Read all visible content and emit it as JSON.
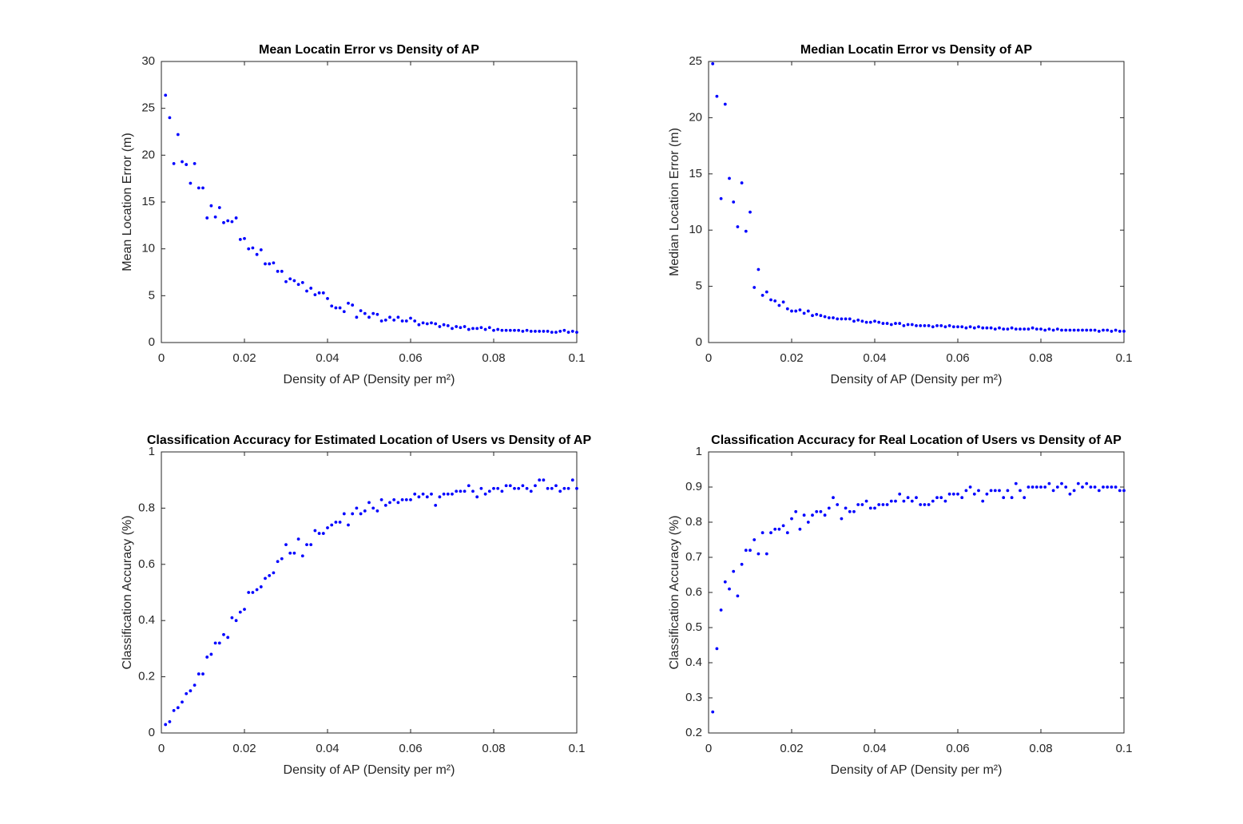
{
  "chart_data": [
    {
      "type": "scatter",
      "title": "Mean Locatin Error vs Density of AP",
      "xlabel": "Density of AP (Density per m²)",
      "ylabel": "Mean Location Error (m)",
      "color": "#0000ff",
      "x": [
        0.001,
        0.002,
        0.003,
        0.004,
        0.005,
        0.006,
        0.007,
        0.008,
        0.009,
        0.01,
        0.011,
        0.012,
        0.013,
        0.014,
        0.015,
        0.016,
        0.017,
        0.018,
        0.019,
        0.02,
        0.021,
        0.022,
        0.023,
        0.024,
        0.025,
        0.026,
        0.027,
        0.028,
        0.029,
        0.03,
        0.031,
        0.032,
        0.033,
        0.034,
        0.035,
        0.036,
        0.037,
        0.038,
        0.039,
        0.04,
        0.041,
        0.042,
        0.043,
        0.044,
        0.045,
        0.046,
        0.047,
        0.048,
        0.049,
        0.05,
        0.051,
        0.052,
        0.053,
        0.054,
        0.055,
        0.056,
        0.057,
        0.058,
        0.059,
        0.06,
        0.061,
        0.062,
        0.063,
        0.064,
        0.065,
        0.066,
        0.067,
        0.068,
        0.069,
        0.07,
        0.071,
        0.072,
        0.073,
        0.074,
        0.075,
        0.076,
        0.077,
        0.078,
        0.079,
        0.08,
        0.081,
        0.082,
        0.083,
        0.084,
        0.085,
        0.086,
        0.087,
        0.088,
        0.089,
        0.09,
        0.091,
        0.092,
        0.093,
        0.094,
        0.095,
        0.096,
        0.097,
        0.098,
        0.099,
        0.1
      ],
      "values": [
        26.4,
        24,
        19.1,
        22.2,
        19.3,
        19,
        17,
        19.1,
        16.5,
        16.5,
        13.3,
        14.6,
        13.4,
        14.4,
        12.8,
        13,
        12.9,
        13.3,
        11,
        11.1,
        10,
        10.1,
        9.4,
        9.9,
        8.4,
        8.4,
        8.5,
        7.6,
        7.6,
        6.5,
        6.8,
        6.6,
        6.2,
        6.4,
        5.5,
        5.8,
        5.1,
        5.3,
        5.3,
        4.7,
        3.9,
        3.7,
        3.7,
        3.3,
        4.2,
        4,
        2.7,
        3.4,
        3.1,
        2.7,
        3.1,
        3,
        2.3,
        2.4,
        2.7,
        2.4,
        2.7,
        2.3,
        2.3,
        2.6,
        2.3,
        1.9,
        2.1,
        2,
        2.1,
        2,
        1.7,
        1.9,
        1.8,
        1.5,
        1.7,
        1.6,
        1.7,
        1.4,
        1.5,
        1.5,
        1.6,
        1.4,
        1.6,
        1.3,
        1.4,
        1.3,
        1.3,
        1.3,
        1.3,
        1.3,
        1.2,
        1.3,
        1.2,
        1.2,
        1.2,
        1.2,
        1.2,
        1.1,
        1.1,
        1.2,
        1.3,
        1.1,
        1.2,
        1.1
      ],
      "xlim": [
        0,
        0.1
      ],
      "xticks": [
        0,
        0.02,
        0.04,
        0.06,
        0.08,
        0.1
      ],
      "ylim": [
        0,
        30
      ],
      "yticks": [
        0,
        5,
        10,
        15,
        20,
        25,
        30
      ]
    },
    {
      "type": "scatter",
      "title": "Median Locatin Error vs Density of AP",
      "xlabel": "Density of AP (Density per m²)",
      "ylabel": "Median Location Error (m)",
      "color": "#0000ff",
      "x": [
        0.001,
        0.002,
        0.003,
        0.004,
        0.005,
        0.006,
        0.007,
        0.008,
        0.009,
        0.01,
        0.011,
        0.012,
        0.013,
        0.014,
        0.015,
        0.016,
        0.017,
        0.018,
        0.019,
        0.02,
        0.021,
        0.022,
        0.023,
        0.024,
        0.025,
        0.026,
        0.027,
        0.028,
        0.029,
        0.03,
        0.031,
        0.032,
        0.033,
        0.034,
        0.035,
        0.036,
        0.037,
        0.038,
        0.039,
        0.04,
        0.041,
        0.042,
        0.043,
        0.044,
        0.045,
        0.046,
        0.047,
        0.048,
        0.049,
        0.05,
        0.051,
        0.052,
        0.053,
        0.054,
        0.055,
        0.056,
        0.057,
        0.058,
        0.059,
        0.06,
        0.061,
        0.062,
        0.063,
        0.064,
        0.065,
        0.066,
        0.067,
        0.068,
        0.069,
        0.07,
        0.071,
        0.072,
        0.073,
        0.074,
        0.075,
        0.076,
        0.077,
        0.078,
        0.079,
        0.08,
        0.081,
        0.082,
        0.083,
        0.084,
        0.085,
        0.086,
        0.087,
        0.088,
        0.089,
        0.09,
        0.091,
        0.092,
        0.093,
        0.094,
        0.095,
        0.096,
        0.097,
        0.098,
        0.099,
        0.1
      ],
      "values": [
        24.8,
        21.9,
        12.8,
        21.2,
        14.6,
        12.5,
        10.3,
        14.2,
        9.9,
        11.6,
        4.9,
        6.5,
        4.2,
        4.5,
        3.8,
        3.7,
        3.3,
        3.6,
        3,
        2.8,
        2.8,
        2.9,
        2.6,
        2.8,
        2.4,
        2.5,
        2.4,
        2.3,
        2.2,
        2.2,
        2.1,
        2.1,
        2.1,
        2.1,
        1.9,
        2,
        1.9,
        1.8,
        1.8,
        1.9,
        1.8,
        1.7,
        1.7,
        1.6,
        1.7,
        1.7,
        1.5,
        1.6,
        1.6,
        1.5,
        1.5,
        1.5,
        1.5,
        1.4,
        1.5,
        1.5,
        1.4,
        1.5,
        1.4,
        1.4,
        1.4,
        1.3,
        1.4,
        1.3,
        1.4,
        1.3,
        1.3,
        1.3,
        1.2,
        1.3,
        1.2,
        1.2,
        1.3,
        1.2,
        1.2,
        1.2,
        1.2,
        1.3,
        1.2,
        1.2,
        1.1,
        1.2,
        1.1,
        1.2,
        1.1,
        1.1,
        1.1,
        1.1,
        1.1,
        1.1,
        1.1,
        1.1,
        1.1,
        1,
        1.1,
        1.1,
        1,
        1.1,
        1,
        1
      ],
      "xlim": [
        0,
        0.1
      ],
      "xticks": [
        0,
        0.02,
        0.04,
        0.06,
        0.08,
        0.1
      ],
      "ylim": [
        0,
        25
      ],
      "yticks": [
        0,
        5,
        10,
        15,
        20,
        25
      ]
    },
    {
      "type": "scatter",
      "title": "Classification Accuracy for Estimated Location of Users vs Density of AP",
      "xlabel": "Density of AP (Density per m²)",
      "ylabel": "Classification Accuracy (%)",
      "color": "#0000ff",
      "x": [
        0.001,
        0.002,
        0.003,
        0.004,
        0.005,
        0.006,
        0.007,
        0.008,
        0.009,
        0.01,
        0.011,
        0.012,
        0.013,
        0.014,
        0.015,
        0.016,
        0.017,
        0.018,
        0.019,
        0.02,
        0.021,
        0.022,
        0.023,
        0.024,
        0.025,
        0.026,
        0.027,
        0.028,
        0.029,
        0.03,
        0.031,
        0.032,
        0.033,
        0.034,
        0.035,
        0.036,
        0.037,
        0.038,
        0.039,
        0.04,
        0.041,
        0.042,
        0.043,
        0.044,
        0.045,
        0.046,
        0.047,
        0.048,
        0.049,
        0.05,
        0.051,
        0.052,
        0.053,
        0.054,
        0.055,
        0.056,
        0.057,
        0.058,
        0.059,
        0.06,
        0.061,
        0.062,
        0.063,
        0.064,
        0.065,
        0.066,
        0.067,
        0.068,
        0.069,
        0.07,
        0.071,
        0.072,
        0.073,
        0.074,
        0.075,
        0.076,
        0.077,
        0.078,
        0.079,
        0.08,
        0.081,
        0.082,
        0.083,
        0.084,
        0.085,
        0.086,
        0.087,
        0.088,
        0.089,
        0.09,
        0.091,
        0.092,
        0.093,
        0.094,
        0.095,
        0.096,
        0.097,
        0.098,
        0.099,
        0.1
      ],
      "values": [
        0.03,
        0.04,
        0.08,
        0.09,
        0.11,
        0.14,
        0.15,
        0.17,
        0.21,
        0.21,
        0.27,
        0.28,
        0.32,
        0.32,
        0.35,
        0.34,
        0.41,
        0.4,
        0.43,
        0.44,
        0.5,
        0.5,
        0.51,
        0.52,
        0.55,
        0.56,
        0.57,
        0.61,
        0.62,
        0.67,
        0.64,
        0.64,
        0.69,
        0.63,
        0.67,
        0.67,
        0.72,
        0.71,
        0.71,
        0.73,
        0.74,
        0.75,
        0.75,
        0.78,
        0.74,
        0.78,
        0.8,
        0.78,
        0.79,
        0.82,
        0.8,
        0.79,
        0.83,
        0.81,
        0.82,
        0.83,
        0.82,
        0.83,
        0.83,
        0.83,
        0.85,
        0.84,
        0.85,
        0.84,
        0.85,
        0.81,
        0.84,
        0.85,
        0.85,
        0.85,
        0.86,
        0.86,
        0.86,
        0.88,
        0.86,
        0.84,
        0.87,
        0.85,
        0.86,
        0.87,
        0.87,
        0.86,
        0.88,
        0.88,
        0.87,
        0.87,
        0.88,
        0.87,
        0.86,
        0.88,
        0.9,
        0.9,
        0.87,
        0.87,
        0.88,
        0.86,
        0.87,
        0.87,
        0.9,
        0.87
      ],
      "xlim": [
        0,
        0.1
      ],
      "xticks": [
        0,
        0.02,
        0.04,
        0.06,
        0.08,
        0.1
      ],
      "ylim": [
        0,
        1
      ],
      "yticks": [
        0,
        0.2,
        0.4,
        0.6,
        0.8,
        1
      ]
    },
    {
      "type": "scatter",
      "title": "Classification Accuracy for Real Location of Users vs Density of AP",
      "xlabel": "Density of AP (Density per m²)",
      "ylabel": "Classification Accuracy (%)",
      "color": "#0000ff",
      "x": [
        0.001,
        0.002,
        0.003,
        0.004,
        0.005,
        0.006,
        0.007,
        0.008,
        0.009,
        0.01,
        0.011,
        0.012,
        0.013,
        0.014,
        0.015,
        0.016,
        0.017,
        0.018,
        0.019,
        0.02,
        0.021,
        0.022,
        0.023,
        0.024,
        0.025,
        0.026,
        0.027,
        0.028,
        0.029,
        0.03,
        0.031,
        0.032,
        0.033,
        0.034,
        0.035,
        0.036,
        0.037,
        0.038,
        0.039,
        0.04,
        0.041,
        0.042,
        0.043,
        0.044,
        0.045,
        0.046,
        0.047,
        0.048,
        0.049,
        0.05,
        0.051,
        0.052,
        0.053,
        0.054,
        0.055,
        0.056,
        0.057,
        0.058,
        0.059,
        0.06,
        0.061,
        0.062,
        0.063,
        0.064,
        0.065,
        0.066,
        0.067,
        0.068,
        0.069,
        0.07,
        0.071,
        0.072,
        0.073,
        0.074,
        0.075,
        0.076,
        0.077,
        0.078,
        0.079,
        0.08,
        0.081,
        0.082,
        0.083,
        0.084,
        0.085,
        0.086,
        0.087,
        0.088,
        0.089,
        0.09,
        0.091,
        0.092,
        0.093,
        0.094,
        0.095,
        0.096,
        0.097,
        0.098,
        0.099,
        0.1
      ],
      "values": [
        0.26,
        0.44,
        0.55,
        0.63,
        0.61,
        0.66,
        0.59,
        0.68,
        0.72,
        0.72,
        0.75,
        0.71,
        0.77,
        0.71,
        0.77,
        0.78,
        0.78,
        0.79,
        0.77,
        0.81,
        0.83,
        0.78,
        0.82,
        0.8,
        0.82,
        0.83,
        0.83,
        0.82,
        0.84,
        0.87,
        0.85,
        0.81,
        0.84,
        0.83,
        0.83,
        0.85,
        0.85,
        0.86,
        0.84,
        0.84,
        0.85,
        0.85,
        0.85,
        0.86,
        0.86,
        0.88,
        0.86,
        0.87,
        0.86,
        0.87,
        0.85,
        0.85,
        0.85,
        0.86,
        0.87,
        0.87,
        0.86,
        0.88,
        0.88,
        0.88,
        0.87,
        0.89,
        0.9,
        0.88,
        0.89,
        0.86,
        0.88,
        0.89,
        0.89,
        0.89,
        0.87,
        0.89,
        0.87,
        0.91,
        0.89,
        0.87,
        0.9,
        0.9,
        0.9,
        0.9,
        0.9,
        0.91,
        0.89,
        0.9,
        0.91,
        0.9,
        0.88,
        0.89,
        0.91,
        0.9,
        0.91,
        0.9,
        0.9,
        0.89,
        0.9,
        0.9,
        0.9,
        0.9,
        0.89,
        0.89
      ],
      "xlim": [
        0,
        0.1
      ],
      "xticks": [
        0,
        0.02,
        0.04,
        0.06,
        0.08,
        0.1
      ],
      "ylim": [
        0.2,
        1
      ],
      "yticks": [
        0.2,
        0.3,
        0.4,
        0.5,
        0.6,
        0.7,
        0.8,
        0.9,
        1
      ]
    }
  ]
}
